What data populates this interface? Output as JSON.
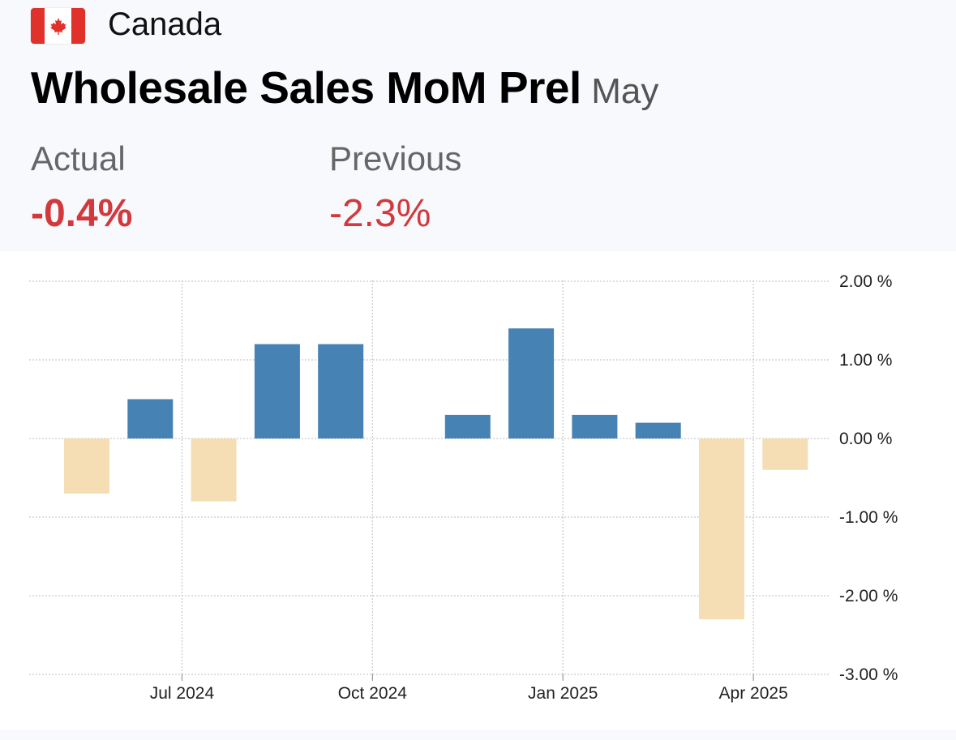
{
  "header": {
    "country": "Canada",
    "flag_icon": "canada-flag-icon",
    "title": "Wholesale Sales MoM Prel",
    "period": "May",
    "actual_label": "Actual",
    "actual_value": "-0.4%",
    "previous_label": "Previous",
    "previous_value": "-2.3%"
  },
  "colors": {
    "positive_bar": "#4682b4",
    "negative_bar": "#f5deb3",
    "value_red": "#d1393c",
    "grid": "#c9c9c9"
  },
  "chart_data": {
    "type": "bar",
    "categories": [
      "2024-06",
      "2024-07",
      "2024-08",
      "2024-09",
      "2024-10",
      "2024-11",
      "2024-12",
      "2025-01",
      "2025-02",
      "2025-03",
      "2025-04",
      "2025-05"
    ],
    "values": [
      -0.7,
      0.5,
      -0.8,
      1.2,
      1.2,
      0.0,
      0.3,
      1.4,
      0.3,
      0.2,
      -2.3,
      -0.4
    ],
    "x_tick_labels": [
      "Jul 2024",
      "Oct 2024",
      "Jan 2025",
      "Apr 2025"
    ],
    "x_tick_categories": [
      "2024-07",
      "2024-10",
      "2025-01",
      "2025-04"
    ],
    "y_tick_labels": [
      "2.00 %",
      "1.00 %",
      "0.00 %",
      "-1.00 %",
      "-2.00 %",
      "-3.00 %"
    ],
    "y_tick_values": [
      2,
      1,
      0,
      -1,
      -2,
      -3
    ],
    "ylim": [
      -3,
      2
    ],
    "grid": true,
    "y_axis_side": "right",
    "title": "",
    "xlabel": "",
    "ylabel": ""
  }
}
